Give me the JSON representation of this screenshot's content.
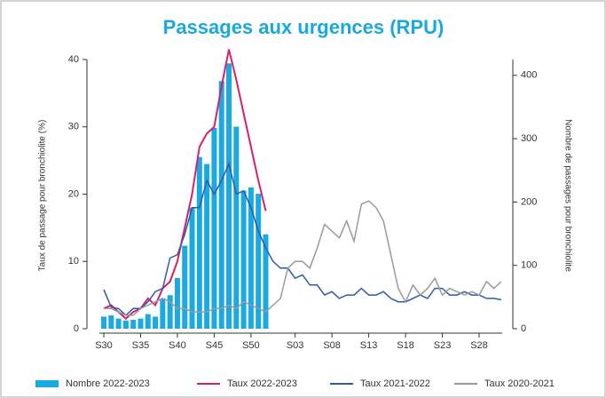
{
  "chart_data": {
    "type": "bar",
    "title": "Passages aux urgences (RPU)",
    "ylabel": "Taux de passage pour bronchiolite (%)",
    "y2label": "Nombre de passages pour bronchiolite",
    "categories": [
      "S30",
      null,
      null,
      null,
      null,
      "S35",
      null,
      null,
      null,
      null,
      "S40",
      null,
      null,
      null,
      null,
      "S45",
      null,
      null,
      null,
      null,
      "S50",
      null,
      null,
      null,
      null,
      null,
      "S03",
      null,
      null,
      null,
      null,
      "S08",
      null,
      null,
      null,
      null,
      "S13",
      null,
      null,
      null,
      null,
      "S18",
      null,
      null,
      null,
      null,
      "S23",
      null,
      null,
      null,
      null,
      "S28",
      null,
      null,
      null
    ],
    "ylim": [
      0,
      40
    ],
    "yticks": [
      0,
      10,
      20,
      30,
      40
    ],
    "y2lim": [
      0,
      425
    ],
    "y2ticks": [
      0,
      100,
      200,
      300,
      400
    ],
    "series": [
      {
        "name": "Nombre 2022-2023",
        "type": "bar",
        "axis": "y2",
        "color": "#1aa9e0",
        "values": [
          19,
          21,
          16,
          13,
          14,
          16,
          23,
          19,
          48,
          53,
          80,
          131,
          191,
          271,
          260,
          317,
          391,
          419,
          319,
          218,
          223,
          213,
          149,
          null,
          null,
          null,
          null,
          null,
          null,
          null,
          null,
          null,
          null,
          null,
          null,
          null,
          null,
          null,
          null,
          null,
          null,
          null,
          null,
          null,
          null,
          null,
          null,
          null,
          null,
          null,
          null,
          null,
          null,
          null,
          null
        ]
      },
      {
        "name": "Taux 2022-2023",
        "type": "line",
        "color": "#d6206e",
        "values": [
          3,
          3.5,
          2.5,
          1.5,
          2.5,
          3,
          4.5,
          3.5,
          6,
          7,
          10,
          15,
          20,
          27,
          29,
          30,
          36,
          41.5,
          37,
          32,
          27,
          22,
          17.5,
          null,
          null,
          null,
          null,
          null,
          null,
          null,
          null,
          null,
          null,
          null,
          null,
          null,
          null,
          null,
          null,
          null,
          null,
          null,
          null,
          null,
          null,
          null,
          null,
          null,
          null,
          null,
          null,
          null,
          null,
          null,
          null
        ]
      },
      {
        "name": "Taux 2021-2022",
        "type": "line",
        "color": "#2e5aa8",
        "values": [
          5.8,
          3.2,
          3,
          2,
          3,
          3,
          4,
          5.5,
          6,
          10.5,
          11,
          14,
          18,
          18,
          22,
          20,
          22,
          24.5,
          20,
          20.5,
          18,
          14.5,
          12,
          10,
          9,
          9,
          7.5,
          8,
          6.5,
          6.5,
          5,
          5.5,
          4.5,
          5,
          5,
          6,
          5,
          5,
          5.5,
          4.5,
          4,
          4,
          4.5,
          5,
          4.5,
          6,
          6,
          5,
          5,
          5.5,
          5,
          5,
          4.5,
          4.5,
          4.3
        ]
      },
      {
        "name": "Taux 2020-2021",
        "type": "line",
        "color": "#9a9a9a",
        "values": [
          3,
          3,
          2.5,
          2,
          2,
          3,
          3.5,
          4,
          4.5,
          4,
          3,
          3,
          2.5,
          2.5,
          2.5,
          3,
          3,
          3.5,
          3,
          4,
          3.5,
          3,
          2.5,
          3.5,
          4.5,
          9,
          10,
          10,
          9,
          12,
          15.5,
          14.5,
          13.5,
          16,
          13,
          18.5,
          19,
          18,
          16,
          11,
          6,
          4,
          6.5,
          5,
          6,
          7.5,
          5,
          6,
          5.5,
          5,
          5.5,
          5,
          7,
          6,
          7
        ]
      }
    ]
  }
}
